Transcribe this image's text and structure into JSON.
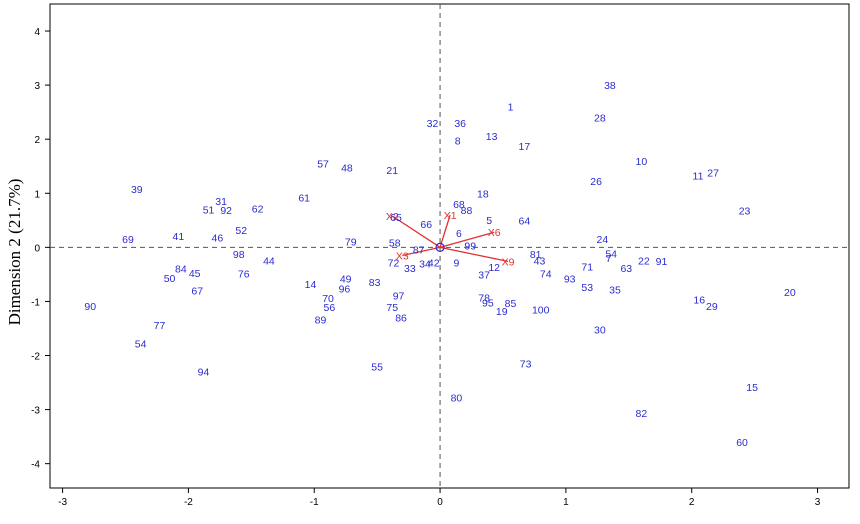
{
  "chart_data": {
    "type": "scatter",
    "title": "",
    "xlabel": "",
    "ylabel": "Dimension 2 (21.7%)",
    "xlim": [
      -3.1,
      3.25
    ],
    "ylim": [
      -4.45,
      4.5
    ],
    "xticks": [
      -3,
      -2,
      -1,
      0,
      1,
      2,
      3
    ],
    "yticks": [
      -4,
      -3,
      -2,
      -1,
      0,
      1,
      2,
      3,
      4
    ],
    "reference_lines": {
      "x": 0,
      "y": 0,
      "style": "dashed"
    },
    "colors": {
      "observations": "#2b2bd0",
      "variables": "#e23030"
    },
    "series": [
      {
        "kind": "observations",
        "points": [
          {
            "label": "1",
            "x": 0.56,
            "y": 2.6
          },
          {
            "label": "32",
            "x": -0.06,
            "y": 2.3
          },
          {
            "label": "36",
            "x": 0.16,
            "y": 2.3
          },
          {
            "label": "8",
            "x": 0.14,
            "y": 1.98
          },
          {
            "label": "13",
            "x": 0.41,
            "y": 2.06
          },
          {
            "label": "17",
            "x": 0.67,
            "y": 1.87
          },
          {
            "label": "38",
            "x": 1.35,
            "y": 3.0
          },
          {
            "label": "28",
            "x": 1.27,
            "y": 2.4
          },
          {
            "label": "10",
            "x": 1.6,
            "y": 1.6
          },
          {
            "label": "26",
            "x": 1.24,
            "y": 1.23
          },
          {
            "label": "11",
            "x": 2.05,
            "y": 1.33
          },
          {
            "label": "27",
            "x": 2.17,
            "y": 1.38
          },
          {
            "label": "23",
            "x": 2.42,
            "y": 0.68
          },
          {
            "label": "39",
            "x": -2.41,
            "y": 1.08
          },
          {
            "label": "57",
            "x": -0.93,
            "y": 1.55
          },
          {
            "label": "48",
            "x": -0.74,
            "y": 1.48
          },
          {
            "label": "21",
            "x": -0.38,
            "y": 1.43
          },
          {
            "label": "61",
            "x": -1.08,
            "y": 0.92
          },
          {
            "label": "31",
            "x": -1.74,
            "y": 0.86
          },
          {
            "label": "51",
            "x": -1.84,
            "y": 0.7
          },
          {
            "label": "92",
            "x": -1.7,
            "y": 0.69
          },
          {
            "label": "62",
            "x": -1.45,
            "y": 0.72
          },
          {
            "label": "41",
            "x": -2.08,
            "y": 0.21
          },
          {
            "label": "69",
            "x": -2.48,
            "y": 0.15
          },
          {
            "label": "46",
            "x": -1.77,
            "y": 0.18
          },
          {
            "label": "52",
            "x": -1.58,
            "y": 0.32
          },
          {
            "label": "98",
            "x": -1.6,
            "y": -0.12
          },
          {
            "label": "44",
            "x": -1.36,
            "y": -0.24
          },
          {
            "label": "76",
            "x": -1.56,
            "y": -0.48
          },
          {
            "label": "84",
            "x": -2.06,
            "y": -0.39
          },
          {
            "label": "45",
            "x": -1.95,
            "y": -0.47
          },
          {
            "label": "50",
            "x": -2.15,
            "y": -0.57
          },
          {
            "label": "67",
            "x": -1.93,
            "y": -0.8
          },
          {
            "label": "90",
            "x": -2.78,
            "y": -1.08
          },
          {
            "label": "77",
            "x": -2.23,
            "y": -1.44
          },
          {
            "label": "54",
            "x": -2.38,
            "y": -1.78
          },
          {
            "label": "94",
            "x": -1.88,
            "y": -2.3
          },
          {
            "label": "14",
            "x": -1.03,
            "y": -0.68
          },
          {
            "label": "49",
            "x": -0.75,
            "y": -0.58
          },
          {
            "label": "96",
            "x": -0.76,
            "y": -0.76
          },
          {
            "label": "83",
            "x": -0.52,
            "y": -0.64
          },
          {
            "label": "70",
            "x": -0.89,
            "y": -0.94
          },
          {
            "label": "56",
            "x": -0.88,
            "y": -1.1
          },
          {
            "label": "89",
            "x": -0.95,
            "y": -1.33
          },
          {
            "label": "97",
            "x": -0.33,
            "y": -0.89
          },
          {
            "label": "75",
            "x": -0.38,
            "y": -1.1
          },
          {
            "label": "86",
            "x": -0.31,
            "y": -1.3
          },
          {
            "label": "55",
            "x": -0.5,
            "y": -2.2
          },
          {
            "label": "79",
            "x": -0.71,
            "y": 0.11
          },
          {
            "label": "58",
            "x": -0.36,
            "y": 0.09
          },
          {
            "label": "65",
            "x": -0.35,
            "y": 0.56
          },
          {
            "label": "66",
            "x": -0.11,
            "y": 0.43
          },
          {
            "label": "72",
            "x": -0.37,
            "y": -0.28
          },
          {
            "label": "33",
            "x": -0.24,
            "y": -0.38
          },
          {
            "label": "34",
            "x": -0.12,
            "y": -0.3
          },
          {
            "label": "42",
            "x": -0.05,
            "y": -0.28
          },
          {
            "label": "87",
            "x": -0.17,
            "y": -0.04
          },
          {
            "label": "6",
            "x": 0.15,
            "y": 0.27
          },
          {
            "label": "68",
            "x": 0.15,
            "y": 0.8
          },
          {
            "label": "88",
            "x": 0.21,
            "y": 0.69
          },
          {
            "label": "18",
            "x": 0.34,
            "y": 1.0
          },
          {
            "label": "5",
            "x": 0.39,
            "y": 0.51
          },
          {
            "label": "99",
            "x": 0.24,
            "y": 0.03
          },
          {
            "label": "9",
            "x": 0.13,
            "y": -0.28
          },
          {
            "label": "12",
            "x": 0.43,
            "y": -0.36
          },
          {
            "label": "37",
            "x": 0.35,
            "y": -0.5
          },
          {
            "label": "64",
            "x": 0.67,
            "y": 0.5
          },
          {
            "label": "78",
            "x": 0.35,
            "y": -0.93
          },
          {
            "label": "85",
            "x": 0.56,
            "y": -1.03
          },
          {
            "label": "95",
            "x": 0.38,
            "y": -1.02
          },
          {
            "label": "19",
            "x": 0.49,
            "y": -1.18
          },
          {
            "label": "100",
            "x": 0.8,
            "y": -1.15
          },
          {
            "label": "73",
            "x": 0.68,
            "y": -2.15
          },
          {
            "label": "80",
            "x": 0.13,
            "y": -2.78
          },
          {
            "label": "81",
            "x": 0.76,
            "y": -0.12
          },
          {
            "label": "43",
            "x": 0.79,
            "y": -0.24
          },
          {
            "label": "74",
            "x": 0.84,
            "y": -0.48
          },
          {
            "label": "93",
            "x": 1.03,
            "y": -0.58
          },
          {
            "label": "71",
            "x": 1.17,
            "y": -0.35
          },
          {
            "label": "53",
            "x": 1.17,
            "y": -0.73
          },
          {
            "label": "35",
            "x": 1.39,
            "y": -0.78
          },
          {
            "label": "24",
            "x": 1.29,
            "y": 0.15
          },
          {
            "label": "54",
            "x": 1.36,
            "y": -0.11
          },
          {
            "label": "7",
            "x": 1.34,
            "y": -0.2
          },
          {
            "label": "63",
            "x": 1.48,
            "y": -0.38
          },
          {
            "label": "22",
            "x": 1.62,
            "y": -0.24
          },
          {
            "label": "91",
            "x": 1.76,
            "y": -0.25
          },
          {
            "label": "30",
            "x": 1.27,
            "y": -1.52
          },
          {
            "label": "16",
            "x": 2.06,
            "y": -0.96
          },
          {
            "label": "29",
            "x": 2.16,
            "y": -1.08
          },
          {
            "label": "20",
            "x": 2.78,
            "y": -0.83
          },
          {
            "label": "82",
            "x": 1.6,
            "y": -3.06
          },
          {
            "label": "15",
            "x": 2.48,
            "y": -2.58
          },
          {
            "label": "60",
            "x": 2.4,
            "y": -3.6
          }
        ]
      },
      {
        "kind": "variables",
        "points": [
          {
            "label": "X2",
            "x": -0.38,
            "y": 0.58
          },
          {
            "label": "X3",
            "x": -0.3,
            "y": -0.15
          },
          {
            "label": "X1",
            "x": 0.08,
            "y": 0.6
          },
          {
            "label": "X6",
            "x": 0.43,
            "y": 0.28
          },
          {
            "label": "X9",
            "x": 0.54,
            "y": -0.26
          }
        ]
      }
    ]
  }
}
